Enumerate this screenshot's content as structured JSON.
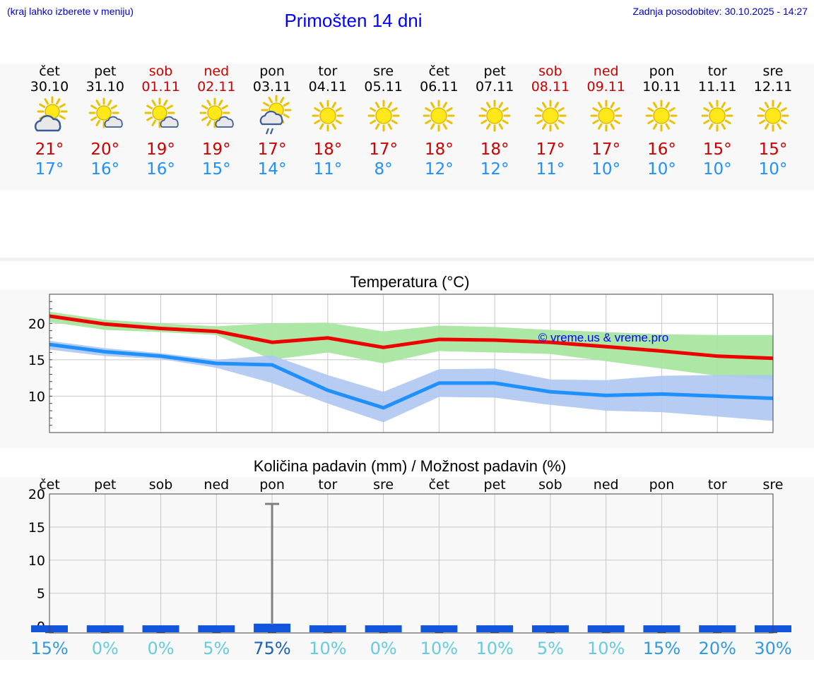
{
  "header": {
    "note": "(kraj lahko izberete v meniju)",
    "title": "Primošten 14 dni",
    "updated": "Zadnja posodobitev: 30.10.2025 - 14:27"
  },
  "days": [
    {
      "name": "čet",
      "date": "30.10",
      "weekend": false,
      "icon": "sun-cloud-icon",
      "tmax": "21°",
      "tmin": "17°"
    },
    {
      "name": "pet",
      "date": "31.10",
      "weekend": false,
      "icon": "sun-small-cloud-icon",
      "tmax": "20°",
      "tmin": "16°"
    },
    {
      "name": "sob",
      "date": "01.11",
      "weekend": true,
      "icon": "sun-small-cloud-icon",
      "tmax": "19°",
      "tmin": "16°"
    },
    {
      "name": "ned",
      "date": "02.11",
      "weekend": true,
      "icon": "sun-small-cloud-icon",
      "tmax": "19°",
      "tmin": "15°"
    },
    {
      "name": "pon",
      "date": "03.11",
      "weekend": false,
      "icon": "sun-rain-icon",
      "tmax": "17°",
      "tmin": "14°"
    },
    {
      "name": "tor",
      "date": "04.11",
      "weekend": false,
      "icon": "sun-icon",
      "tmax": "18°",
      "tmin": "11°"
    },
    {
      "name": "sre",
      "date": "05.11",
      "weekend": false,
      "icon": "sun-icon",
      "tmax": "17°",
      "tmin": "8°"
    },
    {
      "name": "čet",
      "date": "06.11",
      "weekend": false,
      "icon": "sun-icon",
      "tmax": "18°",
      "tmin": "12°"
    },
    {
      "name": "pet",
      "date": "07.11",
      "weekend": false,
      "icon": "sun-icon",
      "tmax": "18°",
      "tmin": "12°"
    },
    {
      "name": "sob",
      "date": "08.11",
      "weekend": true,
      "icon": "sun-icon",
      "tmax": "17°",
      "tmin": "11°"
    },
    {
      "name": "ned",
      "date": "09.11",
      "weekend": true,
      "icon": "sun-icon",
      "tmax": "17°",
      "tmin": "10°"
    },
    {
      "name": "pon",
      "date": "10.11",
      "weekend": false,
      "icon": "sun-icon",
      "tmax": "16°",
      "tmin": "10°"
    },
    {
      "name": "tor",
      "date": "11.11",
      "weekend": false,
      "icon": "sun-icon",
      "tmax": "15°",
      "tmin": "10°"
    },
    {
      "name": "sre",
      "date": "12.11",
      "weekend": false,
      "icon": "sun-icon",
      "tmax": "15°",
      "tmin": "10°"
    }
  ],
  "colors": {
    "max_line": "#ee0000",
    "max_band": "#a8e6a0",
    "min_line": "#1e90ff",
    "min_band": "#aec6f2",
    "weekend_text": "#cc0000",
    "title_blue": "#0000ff",
    "precip_bar": "#1155dd",
    "error_bar": "#808080"
  },
  "chart_data": [
    {
      "type": "line",
      "title": "Temperatura (°C)",
      "watermark": "© vreme.us & vreme.pro",
      "x": [
        0,
        1,
        2,
        3,
        4,
        5,
        6,
        7,
        8,
        9,
        10,
        11,
        12,
        13
      ],
      "ylim": [
        5,
        24
      ],
      "yticks": [
        10,
        15,
        20
      ],
      "series": [
        {
          "name": "max",
          "values": [
            21.0,
            19.9,
            19.3,
            18.9,
            17.4,
            18.0,
            16.7,
            17.8,
            17.7,
            17.4,
            16.8,
            16.2,
            15.5,
            15.2
          ],
          "band_low": [
            20.2,
            19.1,
            18.8,
            18.4,
            15.0,
            16.0,
            14.5,
            16.2,
            16.0,
            15.8,
            14.8,
            13.8,
            12.8,
            12.2
          ],
          "band_high": [
            21.6,
            20.5,
            20.0,
            19.6,
            20.0,
            20.1,
            18.9,
            19.7,
            19.5,
            19.1,
            18.8,
            18.5,
            18.4,
            18.4
          ]
        },
        {
          "name": "min",
          "values": [
            17.1,
            16.1,
            15.5,
            14.5,
            14.3,
            10.8,
            8.4,
            11.8,
            11.8,
            10.6,
            10.1,
            10.3,
            10.0,
            9.7
          ],
          "band_low": [
            16.4,
            15.5,
            15.1,
            13.9,
            11.8,
            9.0,
            6.4,
            9.9,
            9.8,
            8.8,
            8.0,
            7.8,
            7.2,
            6.6
          ],
          "band_high": [
            17.6,
            16.6,
            15.9,
            15.0,
            15.6,
            12.9,
            10.6,
            13.7,
            13.8,
            12.3,
            12.2,
            12.8,
            12.9,
            12.9
          ]
        }
      ]
    },
    {
      "type": "bar",
      "title": "Količina padavin (mm) / Možnost padavin (%)",
      "categories": [
        "čet",
        "pet",
        "sob",
        "ned",
        "pon",
        "tor",
        "sre",
        "čet",
        "pet",
        "sob",
        "ned",
        "pon",
        "tor",
        "sre"
      ],
      "values": [
        0,
        0,
        0,
        0,
        0.3,
        0,
        0,
        0,
        0,
        0,
        0,
        0,
        0,
        0
      ],
      "error_high": [
        0,
        0,
        0,
        0,
        18.5,
        0,
        0,
        0,
        0,
        0,
        0,
        0,
        0,
        0
      ],
      "probability": [
        "15%",
        "0%",
        "0%",
        "5%",
        "75%",
        "10%",
        "0%",
        "10%",
        "10%",
        "5%",
        "10%",
        "15%",
        "20%",
        "30%"
      ],
      "probability_colors": [
        "#3399dd",
        "#66ccdd",
        "#66ccdd",
        "#66ccdd",
        "#1a5fb4",
        "#66ccdd",
        "#66ccdd",
        "#66ccdd",
        "#66ccdd",
        "#66ccdd",
        "#66ccdd",
        "#3399dd",
        "#3399dd",
        "#3399dd"
      ],
      "ylim": [
        -1,
        20
      ],
      "yticks": [
        0,
        5,
        10,
        15,
        20
      ]
    }
  ]
}
